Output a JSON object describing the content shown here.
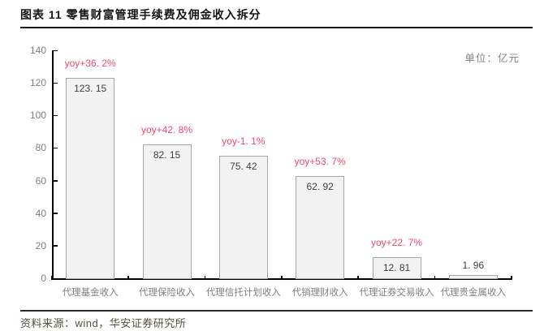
{
  "header": {
    "title": "图表 11 零售财富管理手续费及佣金收入拆分"
  },
  "footer": {
    "source": "资料来源：wind，华安证券研究所"
  },
  "chart_data": {
    "type": "bar",
    "title": "零售财富管理手续费及佣金收入拆分",
    "unit_label": "单位：亿元",
    "unit": "亿元",
    "categories": [
      "代理基金收入",
      "代理保险收入",
      "代理信托计划收入",
      "代销理财收入",
      "代理证券交易收入",
      "代理贵金属收入"
    ],
    "values": [
      123.15,
      82.15,
      75.42,
      62.92,
      12.81,
      1.96
    ],
    "value_labels": [
      "123. 15",
      "82. 15",
      "75. 42",
      "62. 92",
      "12. 81",
      "1. 96"
    ],
    "yoy_labels": [
      "yoy+36. 2%",
      "yoy+42. 8%",
      "yoy-1. 1%",
      "yoy+53. 7%",
      "yoy+22. 7%",
      null
    ],
    "xlabel": "",
    "ylabel": "",
    "ylim": [
      0,
      140
    ],
    "yticks": [
      0,
      20,
      40,
      60,
      80,
      100,
      120,
      140
    ],
    "grid": false,
    "legend": "none",
    "colors": {
      "bar_fill": "#f2f2f2",
      "bar_border": "#a6a6a6",
      "yoy_text": "#f0486f",
      "value_text": "#3f3f3f",
      "axis_line": "#000000",
      "tick_text": "#7f7f7f",
      "title_text": "#141414",
      "source_text": "#55503c"
    }
  }
}
